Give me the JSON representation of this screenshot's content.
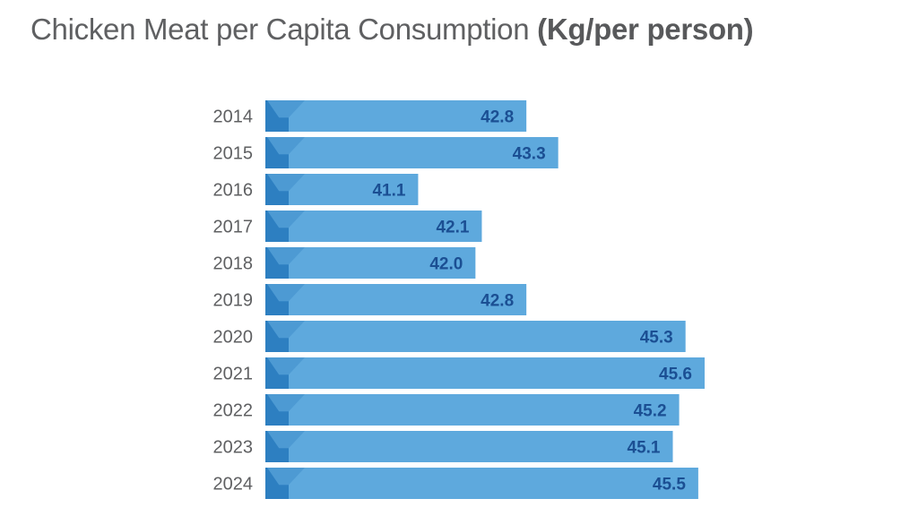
{
  "title": {
    "main": "Chicken Meat per Capita Consumption",
    "unit": "(Kg/per person)"
  },
  "colors": {
    "bar": "#5ea9dd",
    "bar_accent_light": "#4d9ad3",
    "bar_accent_dark": "#2d7fc1",
    "value_label": "#1b4f93",
    "category_label": "#5f6062"
  },
  "chart_data": {
    "type": "bar",
    "orientation": "horizontal",
    "title": "Chicken Meat per Capita Consumption (Kg/per person)",
    "categories": [
      "2014",
      "2015",
      "2016",
      "2017",
      "2018",
      "2019",
      "2020",
      "2021",
      "2022",
      "2023",
      "2024"
    ],
    "values": [
      42.8,
      43.3,
      41.1,
      42.1,
      42.0,
      42.8,
      45.3,
      45.6,
      45.2,
      45.1,
      45.5
    ],
    "value_labels": [
      "42.8",
      "43.3",
      "41.1",
      "42.1",
      "42.0",
      "42.8",
      "45.3",
      "45.6",
      "45.2",
      "45.1",
      "45.5"
    ],
    "xlabel": "",
    "ylabel": "",
    "xlim": [
      38.7,
      45.6
    ],
    "grid": false,
    "legend": "none"
  }
}
